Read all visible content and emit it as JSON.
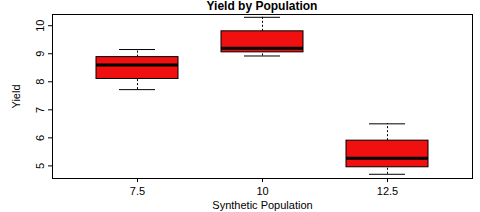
{
  "chart_data": {
    "type": "boxplot",
    "title": "Yield by Population",
    "x_label": "Synthetic Population",
    "y_label": "Yield",
    "categories": [
      "7.5",
      "10",
      "12.5"
    ],
    "whisker_low": [
      7.72,
      8.92,
      4.7
    ],
    "q1": [
      8.1,
      9.05,
      4.95
    ],
    "median": [
      8.6,
      9.2,
      5.27
    ],
    "q3": [
      8.88,
      9.8,
      5.9
    ],
    "whisker_high": [
      9.15,
      10.3,
      6.5
    ],
    "color": "#f01010",
    "ylim": [
      4.55,
      10.4
    ],
    "yticks": [
      5,
      6,
      7,
      8,
      9,
      10
    ],
    "grid": false
  }
}
